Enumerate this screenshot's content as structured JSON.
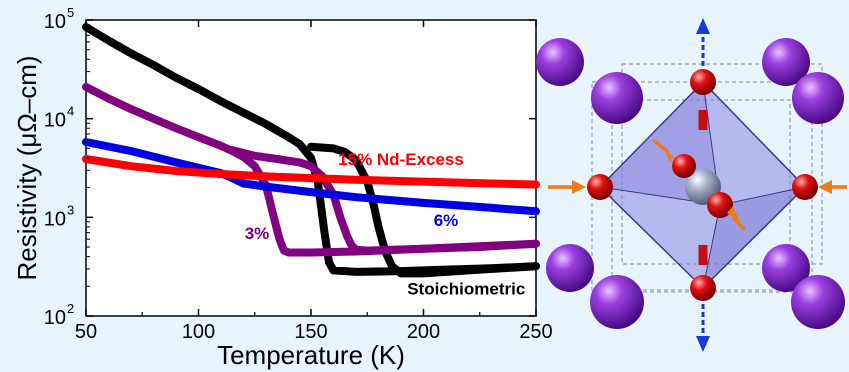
{
  "chart_data": {
    "type": "line",
    "xlabel": "Temperature (K)",
    "ylabel": "Resistivity (μΩ–cm)",
    "xlim": [
      50,
      250
    ],
    "ylim": [
      100,
      100000
    ],
    "yscale": "log",
    "grid": false,
    "x_ticks": [
      {
        "value": 50,
        "label": "50"
      },
      {
        "value": 100,
        "label": "100"
      },
      {
        "value": 150,
        "label": "150"
      },
      {
        "value": 200,
        "label": "200"
      },
      {
        "value": 250,
        "label": "250"
      }
    ],
    "y_ticks": [
      {
        "value": 100,
        "base": "10",
        "exp": "2"
      },
      {
        "value": 1000,
        "base": "10",
        "exp": "3"
      },
      {
        "value": 10000,
        "base": "10",
        "exp": "4"
      },
      {
        "value": 100000,
        "base": "10",
        "exp": "5"
      }
    ],
    "series": [
      {
        "name": "Stoichiometric",
        "color": "#000000",
        "x": [
          50,
          60,
          70,
          80,
          90,
          100,
          110,
          120,
          130,
          140,
          145,
          150,
          153,
          156,
          158,
          160,
          170,
          190,
          210,
          230,
          250
        ],
        "y": [
          85000,
          62000,
          46000,
          35000,
          26000,
          20000,
          15000,
          11500,
          8800,
          6500,
          5500,
          4000,
          2300,
          700,
          350,
          290,
          280,
          285,
          295,
          305,
          320
        ]
      },
      {
        "name": "Stoichiometric",
        "color": "#000000",
        "x": [
          150,
          160,
          165,
          170,
          175,
          178,
          180,
          183,
          186,
          190,
          200,
          220,
          250
        ],
        "y": [
          5200,
          5000,
          4600,
          3800,
          2300,
          1300,
          800,
          450,
          320,
          270,
          270,
          290,
          320
        ]
      },
      {
        "name": "3%",
        "color": "#800080",
        "x": [
          50,
          60,
          70,
          80,
          90,
          100,
          110,
          115,
          120,
          125,
          130,
          133,
          136,
          138,
          140,
          150,
          170,
          200,
          250
        ],
        "y": [
          21000,
          16000,
          12500,
          10000,
          8000,
          6500,
          5300,
          4700,
          4100,
          3300,
          2100,
          1100,
          600,
          460,
          440,
          440,
          450,
          480,
          540
        ]
      },
      {
        "name": "3%",
        "color": "#800080",
        "x": [
          115,
          125,
          135,
          145,
          150,
          155,
          160,
          163,
          166,
          168,
          170,
          175,
          200,
          225,
          250
        ],
        "y": [
          4800,
          4200,
          3900,
          3600,
          3300,
          2600,
          1700,
          1000,
          650,
          520,
          470,
          460,
          480,
          500,
          540
        ]
      },
      {
        "name": "6%",
        "color": "#0000e0",
        "x": [
          50,
          70,
          90,
          110,
          115,
          120,
          130,
          150,
          170,
          200,
          230,
          250
        ],
        "y": [
          5800,
          4700,
          3600,
          2800,
          2500,
          2200,
          2050,
          1800,
          1600,
          1400,
          1250,
          1150
        ]
      },
      {
        "name": "15% Nd-Excess",
        "color": "#ff0000",
        "x": [
          50,
          70,
          90,
          110,
          130,
          150,
          170,
          200,
          230,
          250
        ],
        "y": [
          3900,
          3300,
          2950,
          2750,
          2600,
          2500,
          2400,
          2300,
          2200,
          2150
        ]
      }
    ],
    "annotations": [
      {
        "text": "15% Nd-Excess",
        "color": "#ff0000",
        "x": 190,
        "y": 3400
      },
      {
        "text": "6%",
        "color": "#0000e0",
        "x": 210,
        "y": 820
      },
      {
        "text": "3%",
        "color": "#800080",
        "x": 126,
        "y": 600
      },
      {
        "text": "Stoichiometric",
        "color": "#000000",
        "x": 219,
        "y": 165
      }
    ]
  }
}
